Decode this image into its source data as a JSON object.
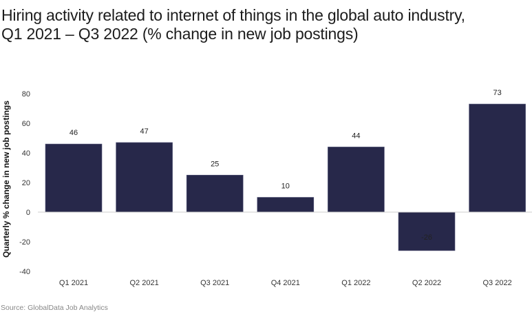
{
  "chart_data": {
    "type": "bar",
    "title": "Hiring activity related to internet of things in the global auto industry, Q1 2021 – Q3 2022 (% change in new job postings)",
    "xlabel": "",
    "ylabel": "Quarterly % change in new job postings",
    "categories": [
      "Q1 2021",
      "Q2 2021",
      "Q3 2021",
      "Q4 2021",
      "Q1 2022",
      "Q2 2022",
      "Q3 2022"
    ],
    "values": [
      46,
      47,
      25,
      10,
      44,
      -26,
      73
    ],
    "ylim": [
      -40,
      80
    ],
    "yticks": [
      80,
      60,
      40,
      20,
      0,
      -20,
      -40
    ],
    "grid": false,
    "legend": "none",
    "bar_color": "#27284a",
    "source": "Source: GlobalData Job Analytics"
  }
}
